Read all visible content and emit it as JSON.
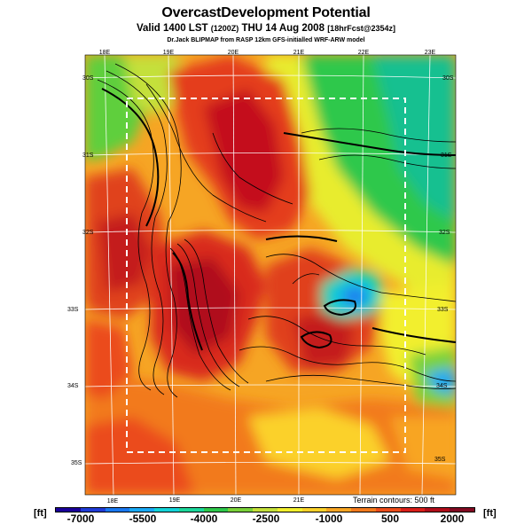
{
  "header": {
    "title": "OvercastDevelopment Potential",
    "subtitle_main": "Valid 1400 LST",
    "subtitle_small": "(1200Z)",
    "subtitle_rest": "THU 14 Aug 2008",
    "subtitle_fcst": "[18hrFcst@2354z]",
    "credit": "Dr.Jack BLIPMAP from RASP 12km GFS-initialled WRF-ARW model"
  },
  "map": {
    "top_longitude_labels": [
      "18E",
      "19E",
      "20E",
      "21E",
      "22E",
      "23E"
    ],
    "bottom_longitude_labels": [
      "18E",
      "19E",
      "20E",
      "21E"
    ],
    "left_latitude_labels": [
      "30S",
      "31S",
      "32S",
      "33S",
      "34S",
      "35S"
    ],
    "right_latitude_labels": [
      "30S",
      "31S",
      "32S",
      "33S",
      "34S",
      "35S"
    ],
    "terrain_note": "Terrain contours: 500 ft"
  },
  "colorbar": {
    "unit_left": "[ft]",
    "unit_right": "[ft]",
    "ticks": [
      "-7000",
      "-5500",
      "-4000",
      "-2500",
      "-1000",
      "500",
      "2000"
    ],
    "range": [
      -7500,
      2500
    ],
    "colors": [
      "#1a0099",
      "#1f3bd6",
      "#1a78f0",
      "#19a9f5",
      "#13d4d8",
      "#1cd79a",
      "#2ec84b",
      "#7ad23a",
      "#c4e03a",
      "#f2ef2e",
      "#fbd12a",
      "#f8a523",
      "#f27a1d",
      "#eb4c1a",
      "#da1f1a",
      "#b00d1a",
      "#820a22"
    ]
  }
}
